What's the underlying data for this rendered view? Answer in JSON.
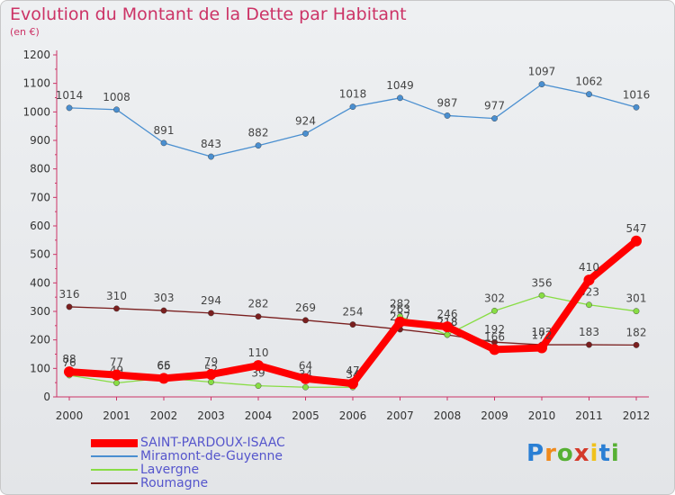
{
  "header": {
    "title": "Evolution du Montant de la Dette par Habitant",
    "subtitle": "(en €)"
  },
  "logo": {
    "text": "Proxiti"
  },
  "chart_data": {
    "type": "line",
    "x": [
      "2000",
      "2001",
      "2002",
      "2003",
      "2004",
      "2005",
      "2006",
      "2007",
      "2008",
      "2009",
      "2010",
      "2011",
      "2012"
    ],
    "ylim": [
      0,
      1200
    ],
    "yticks": [
      0,
      100,
      200,
      300,
      400,
      500,
      600,
      700,
      800,
      900,
      1000,
      1100,
      1200
    ],
    "grid": false,
    "legend_position": "bottom-left",
    "series": [
      {
        "name": "SAINT-PARDOUX-ISAAC",
        "color": "#ff0000",
        "values": [
          88,
          77,
          65,
          79,
          110,
          64,
          47,
          263,
          246,
          166,
          172,
          410,
          547
        ],
        "labels": [
          "88",
          "77",
          "65",
          "79",
          "110",
          "64",
          "47",
          "263",
          "246",
          "166",
          "172",
          "410",
          "547"
        ]
      },
      {
        "name": "Miramont-de-Guyenne",
        "color": "#4a8fd0",
        "values": [
          1014,
          1008,
          891,
          843,
          882,
          924,
          1018,
          1049,
          987,
          977,
          1097,
          1062,
          1016
        ],
        "labels": [
          "1014",
          "1008",
          "891",
          "843",
          "882",
          "924",
          "1018",
          "1049",
          "987",
          "977",
          "1097",
          "1062",
          "1016"
        ]
      },
      {
        "name": "Lavergne",
        "color": "#88dd44",
        "values": [
          76,
          49,
          66,
          52,
          39,
          34,
          34,
          282,
          218,
          302,
          356,
          323,
          301
        ],
        "labels": [
          "76",
          "49",
          "66",
          "52",
          "39",
          "34",
          "34",
          "282",
          "218",
          "302",
          "356",
          "323",
          "301"
        ]
      },
      {
        "name": "Roumagne",
        "color": "#7a1f1f",
        "values": [
          316,
          310,
          303,
          294,
          282,
          269,
          254,
          237,
          218,
          192,
          183,
          183,
          182
        ],
        "labels": [
          "316",
          "310",
          "303",
          "294",
          "282",
          "269",
          "254",
          "237",
          "218",
          "192",
          "183",
          "183",
          "182"
        ]
      }
    ]
  }
}
